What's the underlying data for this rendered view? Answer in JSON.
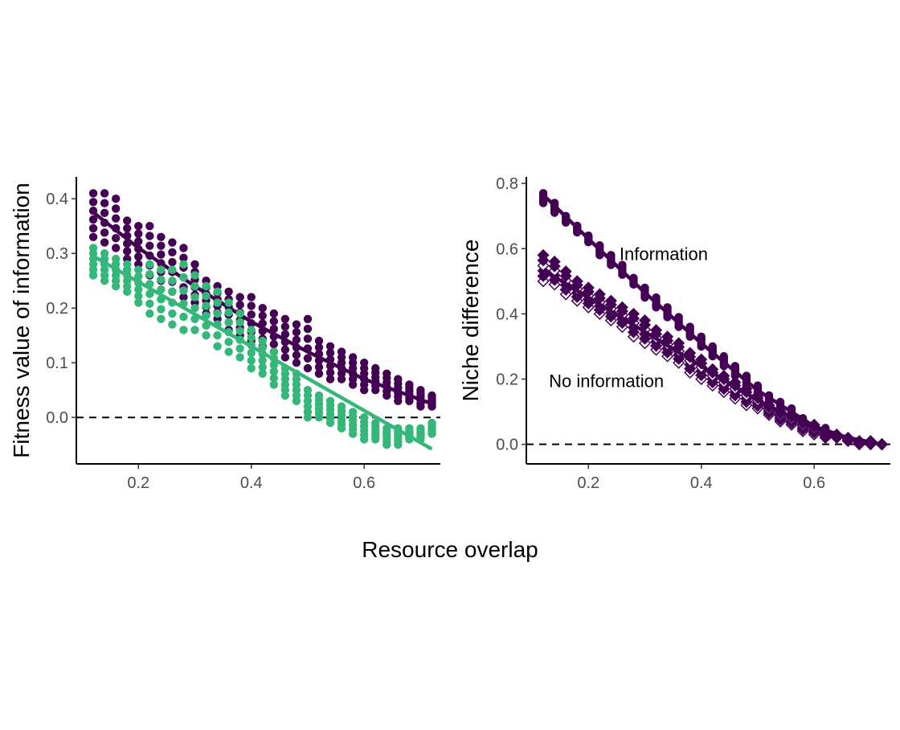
{
  "figure": {
    "xlabel": "Resource overlap"
  },
  "colors": {
    "information": "#440154",
    "no_information": "#35b779",
    "axis": "#000000",
    "tick_text": "#4d4d4d"
  },
  "chart_data": [
    {
      "type": "scatter",
      "title": "",
      "xlabel": "",
      "ylabel": "Fitness value of information",
      "xlim": [
        0.09,
        0.735
      ],
      "ylim": [
        -0.085,
        0.44
      ],
      "xticks": [
        0.2,
        0.4,
        0.6
      ],
      "xtick_labels": [
        "0.2",
        "0.4",
        "0.6"
      ],
      "yticks": [
        0.0,
        0.1,
        0.2,
        0.3,
        0.4
      ],
      "ytick_labels": [
        "0.0",
        "0.1",
        "0.2",
        "0.3",
        "0.4"
      ],
      "reference_line": {
        "y": 0.0,
        "style": "dashed"
      },
      "grid": false,
      "legend": "none",
      "x": [
        0.12,
        0.14,
        0.16,
        0.18,
        0.2,
        0.22,
        0.24,
        0.26,
        0.28,
        0.3,
        0.32,
        0.34,
        0.36,
        0.38,
        0.4,
        0.42,
        0.44,
        0.46,
        0.48,
        0.5,
        0.52,
        0.54,
        0.56,
        0.58,
        0.6,
        0.62,
        0.64,
        0.66,
        0.68,
        0.7,
        0.72
      ],
      "series": [
        {
          "color": "#440154",
          "marker": "circle",
          "points": [
            {
              "x": 0.12,
              "y_min": 0.33,
              "y_max": 0.41
            },
            {
              "x": 0.14,
              "y_min": 0.32,
              "y_max": 0.41
            },
            {
              "x": 0.16,
              "y_min": 0.31,
              "y_max": 0.4
            },
            {
              "x": 0.18,
              "y_min": 0.29,
              "y_max": 0.36
            },
            {
              "x": 0.2,
              "y_min": 0.28,
              "y_max": 0.35
            },
            {
              "x": 0.22,
              "y_min": 0.26,
              "y_max": 0.35
            },
            {
              "x": 0.24,
              "y_min": 0.25,
              "y_max": 0.33
            },
            {
              "x": 0.26,
              "y_min": 0.23,
              "y_max": 0.32
            },
            {
              "x": 0.28,
              "y_min": 0.22,
              "y_max": 0.31
            },
            {
              "x": 0.3,
              "y_min": 0.21,
              "y_max": 0.28
            },
            {
              "x": 0.32,
              "y_min": 0.19,
              "y_max": 0.25
            },
            {
              "x": 0.34,
              "y_min": 0.18,
              "y_max": 0.24
            },
            {
              "x": 0.36,
              "y_min": 0.16,
              "y_max": 0.23
            },
            {
              "x": 0.38,
              "y_min": 0.15,
              "y_max": 0.22
            },
            {
              "x": 0.4,
              "y_min": 0.14,
              "y_max": 0.22
            },
            {
              "x": 0.42,
              "y_min": 0.13,
              "y_max": 0.2
            },
            {
              "x": 0.44,
              "y_min": 0.12,
              "y_max": 0.19
            },
            {
              "x": 0.46,
              "y_min": 0.11,
              "y_max": 0.18
            },
            {
              "x": 0.48,
              "y_min": 0.1,
              "y_max": 0.17
            },
            {
              "x": 0.5,
              "y_min": 0.09,
              "y_max": 0.18
            },
            {
              "x": 0.52,
              "y_min": 0.08,
              "y_max": 0.14
            },
            {
              "x": 0.54,
              "y_min": 0.07,
              "y_max": 0.13
            },
            {
              "x": 0.56,
              "y_min": 0.07,
              "y_max": 0.12
            },
            {
              "x": 0.58,
              "y_min": 0.06,
              "y_max": 0.11
            },
            {
              "x": 0.6,
              "y_min": 0.05,
              "y_max": 0.1
            },
            {
              "x": 0.62,
              "y_min": 0.05,
              "y_max": 0.09
            },
            {
              "x": 0.64,
              "y_min": 0.04,
              "y_max": 0.08
            },
            {
              "x": 0.66,
              "y_min": 0.03,
              "y_max": 0.07
            },
            {
              "x": 0.68,
              "y_min": 0.03,
              "y_max": 0.06
            },
            {
              "x": 0.7,
              "y_min": 0.02,
              "y_max": 0.05
            },
            {
              "x": 0.72,
              "y_min": 0.02,
              "y_max": 0.04
            }
          ],
          "fit_line": [
            [
              0.12,
              0.375
            ],
            [
              0.2,
              0.31
            ],
            [
              0.3,
              0.24
            ],
            [
              0.4,
              0.175
            ],
            [
              0.5,
              0.12
            ],
            [
              0.6,
              0.07
            ],
            [
              0.72,
              0.025
            ]
          ]
        },
        {
          "color": "#35b779",
          "marker": "circle",
          "points": [
            {
              "x": 0.12,
              "y_min": 0.26,
              "y_max": 0.31
            },
            {
              "x": 0.14,
              "y_min": 0.25,
              "y_max": 0.3
            },
            {
              "x": 0.16,
              "y_min": 0.24,
              "y_max": 0.29
            },
            {
              "x": 0.18,
              "y_min": 0.23,
              "y_max": 0.28
            },
            {
              "x": 0.2,
              "y_min": 0.21,
              "y_max": 0.27
            },
            {
              "x": 0.22,
              "y_min": 0.19,
              "y_max": 0.28
            },
            {
              "x": 0.24,
              "y_min": 0.18,
              "y_max": 0.27
            },
            {
              "x": 0.26,
              "y_min": 0.17,
              "y_max": 0.27
            },
            {
              "x": 0.28,
              "y_min": 0.16,
              "y_max": 0.28
            },
            {
              "x": 0.3,
              "y_min": 0.16,
              "y_max": 0.26
            },
            {
              "x": 0.32,
              "y_min": 0.15,
              "y_max": 0.24
            },
            {
              "x": 0.34,
              "y_min": 0.13,
              "y_max": 0.23
            },
            {
              "x": 0.36,
              "y_min": 0.12,
              "y_max": 0.21
            },
            {
              "x": 0.38,
              "y_min": 0.11,
              "y_max": 0.19
            },
            {
              "x": 0.4,
              "y_min": 0.09,
              "y_max": 0.16
            },
            {
              "x": 0.42,
              "y_min": 0.08,
              "y_max": 0.14
            },
            {
              "x": 0.44,
              "y_min": 0.06,
              "y_max": 0.12
            },
            {
              "x": 0.46,
              "y_min": 0.04,
              "y_max": 0.09
            },
            {
              "x": 0.48,
              "y_min": 0.03,
              "y_max": 0.08
            },
            {
              "x": 0.5,
              "y_min": 0.0,
              "y_max": 0.05
            },
            {
              "x": 0.52,
              "y_min": 0.0,
              "y_max": 0.04
            },
            {
              "x": 0.54,
              "y_min": -0.01,
              "y_max": 0.03
            },
            {
              "x": 0.56,
              "y_min": -0.02,
              "y_max": 0.02
            },
            {
              "x": 0.58,
              "y_min": -0.03,
              "y_max": 0.01
            },
            {
              "x": 0.6,
              "y_min": -0.04,
              "y_max": 0.0
            },
            {
              "x": 0.62,
              "y_min": -0.04,
              "y_max": -0.01
            },
            {
              "x": 0.64,
              "y_min": -0.05,
              "y_max": -0.02
            },
            {
              "x": 0.66,
              "y_min": -0.05,
              "y_max": -0.02
            },
            {
              "x": 0.68,
              "y_min": -0.04,
              "y_max": -0.02
            },
            {
              "x": 0.7,
              "y_min": -0.04,
              "y_max": -0.02
            },
            {
              "x": 0.72,
              "y_min": -0.03,
              "y_max": -0.01
            }
          ],
          "fit_line": [
            [
              0.12,
              0.295
            ],
            [
              0.4,
              0.13
            ],
            [
              0.72,
              -0.058
            ]
          ]
        }
      ]
    },
    {
      "type": "scatter",
      "title": "",
      "xlabel": "",
      "ylabel": "Niche difference",
      "xlim": [
        0.09,
        0.735
      ],
      "ylim": [
        -0.06,
        0.82
      ],
      "xticks": [
        0.2,
        0.4,
        0.6
      ],
      "xtick_labels": [
        "0.2",
        "0.4",
        "0.6"
      ],
      "yticks": [
        0.0,
        0.2,
        0.4,
        0.6,
        0.8
      ],
      "ytick_labels": [
        "0.0",
        "0.2",
        "0.4",
        "0.6",
        "0.8"
      ],
      "reference_line": {
        "y": 0.0,
        "style": "dashed"
      },
      "grid": false,
      "legend": "none",
      "annotations": [
        {
          "text": "Information",
          "x": 0.255,
          "y": 0.565
        },
        {
          "text": "No information",
          "x": 0.13,
          "y": 0.175
        }
      ],
      "series": [
        {
          "color": "#440154",
          "marker": "circle",
          "points": [
            {
              "x": 0.12,
              "y_min": 0.74,
              "y_max": 0.77
            },
            {
              "x": 0.14,
              "y_min": 0.71,
              "y_max": 0.74
            },
            {
              "x": 0.16,
              "y_min": 0.68,
              "y_max": 0.7
            },
            {
              "x": 0.18,
              "y_min": 0.65,
              "y_max": 0.67
            },
            {
              "x": 0.2,
              "y_min": 0.62,
              "y_max": 0.64
            },
            {
              "x": 0.22,
              "y_min": 0.58,
              "y_max": 0.61
            },
            {
              "x": 0.24,
              "y_min": 0.55,
              "y_max": 0.58
            },
            {
              "x": 0.26,
              "y_min": 0.52,
              "y_max": 0.55
            },
            {
              "x": 0.28,
              "y_min": 0.49,
              "y_max": 0.51
            },
            {
              "x": 0.3,
              "y_min": 0.45,
              "y_max": 0.48
            },
            {
              "x": 0.32,
              "y_min": 0.42,
              "y_max": 0.45
            },
            {
              "x": 0.34,
              "y_min": 0.39,
              "y_max": 0.42
            },
            {
              "x": 0.36,
              "y_min": 0.36,
              "y_max": 0.39
            },
            {
              "x": 0.38,
              "y_min": 0.33,
              "y_max": 0.36
            },
            {
              "x": 0.4,
              "y_min": 0.3,
              "y_max": 0.33
            },
            {
              "x": 0.42,
              "y_min": 0.27,
              "y_max": 0.3
            },
            {
              "x": 0.44,
              "y_min": 0.24,
              "y_max": 0.27
            },
            {
              "x": 0.46,
              "y_min": 0.21,
              "y_max": 0.24
            },
            {
              "x": 0.48,
              "y_min": 0.18,
              "y_max": 0.21
            },
            {
              "x": 0.5,
              "y_min": 0.15,
              "y_max": 0.18
            },
            {
              "x": 0.52,
              "y_min": 0.13,
              "y_max": 0.15
            },
            {
              "x": 0.54,
              "y_min": 0.1,
              "y_max": 0.13
            },
            {
              "x": 0.56,
              "y_min": 0.08,
              "y_max": 0.11
            },
            {
              "x": 0.58,
              "y_min": 0.06,
              "y_max": 0.08
            },
            {
              "x": 0.6,
              "y_min": 0.04,
              "y_max": 0.06
            },
            {
              "x": 0.62,
              "y_min": 0.03,
              "y_max": 0.05
            },
            {
              "x": 0.64,
              "y_min": 0.02,
              "y_max": 0.03
            },
            {
              "x": 0.66,
              "y_min": 0.01,
              "y_max": 0.02
            },
            {
              "x": 0.68,
              "y_min": 0.0,
              "y_max": 0.01
            },
            {
              "x": 0.7,
              "y_min": 0.0,
              "y_max": 0.01
            },
            {
              "x": 0.72,
              "y_min": 0.0,
              "y_max": 0.0
            }
          ],
          "fit_line": [
            [
              0.12,
              0.765
            ],
            [
              0.2,
              0.63
            ],
            [
              0.3,
              0.465
            ],
            [
              0.4,
              0.31
            ],
            [
              0.5,
              0.165
            ],
            [
              0.6,
              0.055
            ],
            [
              0.66,
              0.02
            ],
            [
              0.72,
              0.0
            ]
          ]
        },
        {
          "color": "#440154",
          "marker": "diamond",
          "points": [
            {
              "x": 0.12,
              "y_min": 0.5,
              "y_max": 0.58
            },
            {
              "x": 0.14,
              "y_min": 0.49,
              "y_max": 0.56
            },
            {
              "x": 0.16,
              "y_min": 0.46,
              "y_max": 0.53
            },
            {
              "x": 0.18,
              "y_min": 0.44,
              "y_max": 0.5
            },
            {
              "x": 0.2,
              "y_min": 0.42,
              "y_max": 0.48
            },
            {
              "x": 0.22,
              "y_min": 0.4,
              "y_max": 0.46
            },
            {
              "x": 0.24,
              "y_min": 0.38,
              "y_max": 0.44
            },
            {
              "x": 0.26,
              "y_min": 0.36,
              "y_max": 0.42
            },
            {
              "x": 0.28,
              "y_min": 0.33,
              "y_max": 0.4
            },
            {
              "x": 0.3,
              "y_min": 0.31,
              "y_max": 0.38
            },
            {
              "x": 0.32,
              "y_min": 0.29,
              "y_max": 0.35
            },
            {
              "x": 0.34,
              "y_min": 0.27,
              "y_max": 0.33
            },
            {
              "x": 0.36,
              "y_min": 0.25,
              "y_max": 0.31
            },
            {
              "x": 0.38,
              "y_min": 0.22,
              "y_max": 0.28
            },
            {
              "x": 0.4,
              "y_min": 0.2,
              "y_max": 0.26
            },
            {
              "x": 0.42,
              "y_min": 0.18,
              "y_max": 0.23
            },
            {
              "x": 0.44,
              "y_min": 0.16,
              "y_max": 0.21
            },
            {
              "x": 0.46,
              "y_min": 0.14,
              "y_max": 0.19
            },
            {
              "x": 0.48,
              "y_min": 0.12,
              "y_max": 0.17
            },
            {
              "x": 0.5,
              "y_min": 0.11,
              "y_max": 0.15
            },
            {
              "x": 0.52,
              "y_min": 0.09,
              "y_max": 0.12
            },
            {
              "x": 0.54,
              "y_min": 0.07,
              "y_max": 0.1
            },
            {
              "x": 0.56,
              "y_min": 0.06,
              "y_max": 0.09
            },
            {
              "x": 0.58,
              "y_min": 0.04,
              "y_max": 0.07
            },
            {
              "x": 0.6,
              "y_min": 0.03,
              "y_max": 0.06
            },
            {
              "x": 0.62,
              "y_min": 0.02,
              "y_max": 0.04
            },
            {
              "x": 0.64,
              "y_min": 0.02,
              "y_max": 0.03
            },
            {
              "x": 0.66,
              "y_min": 0.01,
              "y_max": 0.02
            },
            {
              "x": 0.68,
              "y_min": 0.0,
              "y_max": 0.01
            },
            {
              "x": 0.7,
              "y_min": 0.0,
              "y_max": 0.01
            },
            {
              "x": 0.72,
              "y_min": 0.0,
              "y_max": 0.0
            }
          ],
          "fit_line": [
            [
              0.12,
              0.535
            ],
            [
              0.2,
              0.45
            ],
            [
              0.3,
              0.345
            ],
            [
              0.4,
              0.24
            ],
            [
              0.5,
              0.135
            ],
            [
              0.6,
              0.05
            ],
            [
              0.66,
              0.02
            ],
            [
              0.72,
              0.0
            ]
          ]
        }
      ]
    }
  ]
}
